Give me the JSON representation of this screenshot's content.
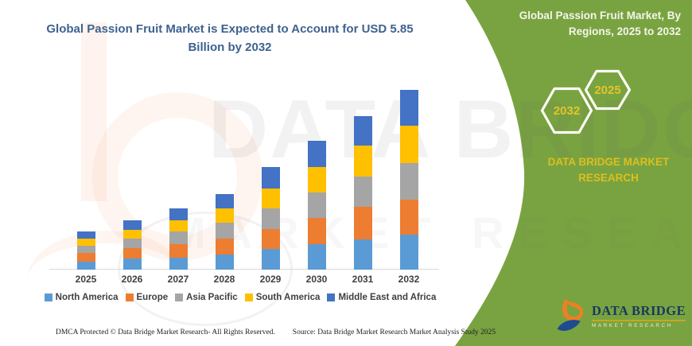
{
  "left_panel": {
    "title": "Global Passion Fruit Market is Expected to Account for USD 5.85 Billion by 2032",
    "footer": {
      "dmca": "DMCA Protected © Data Bridge Market Research- All Rights Reserved.",
      "source": "Source: Data Bridge Market Research Market Analysis Study 2025"
    }
  },
  "right_panel": {
    "heading": "Global Passion Fruit Market, By Regions, 2025 to 2032",
    "hexagons": [
      {
        "label": "2032"
      },
      {
        "label": "2025"
      }
    ],
    "brand_text": "DATA BRIDGE MARKET RESEARCH",
    "logo": {
      "title": "DATA BRIDGE",
      "subtitle": "MARKET RESEARCH"
    }
  },
  "watermark": {
    "line1": "DATA BRIDGE",
    "line2": "MARKET RESEARCH"
  },
  "colors": {
    "panel_green": "#79A341",
    "gold_text": "#DDBE1E",
    "hexagon_year": "#E4C42C",
    "title_blue": "#3E628F",
    "logo_navy": "#18375E",
    "axis_gray": "#d9d9d9"
  },
  "chart_data": {
    "type": "bar",
    "stacked": true,
    "title": "Global Passion Fruit Market, By Regions, 2025 to 2032",
    "unit": "USD Billion",
    "categories": [
      "2025",
      "2026",
      "2027",
      "2028",
      "2029",
      "2030",
      "2031",
      "2032"
    ],
    "series": [
      {
        "name": "North America",
        "color": "#5B9BD5",
        "values": [
          0.26,
          0.34,
          0.38,
          0.49,
          0.65,
          0.82,
          0.97,
          1.12
        ]
      },
      {
        "name": "Europe",
        "color": "#ED7D31",
        "values": [
          0.28,
          0.35,
          0.44,
          0.5,
          0.67,
          0.84,
          1.06,
          1.16
        ]
      },
      {
        "name": "Asia Pacific",
        "color": "#A5A5A5",
        "values": [
          0.22,
          0.3,
          0.4,
          0.52,
          0.66,
          0.84,
          0.98,
          1.18
        ]
      },
      {
        "name": "South America",
        "color": "#FFC000",
        "values": [
          0.23,
          0.29,
          0.37,
          0.47,
          0.65,
          0.82,
          1.03,
          1.22
        ]
      },
      {
        "name": "Middle East and Africa",
        "color": "#4472C4",
        "values": [
          0.25,
          0.31,
          0.38,
          0.48,
          0.69,
          0.86,
          0.95,
          1.17
        ]
      }
    ],
    "totals": [
      1.24,
      1.59,
      1.97,
      2.46,
      3.32,
      4.18,
      4.99,
      5.85
    ],
    "ylim": [
      0,
      6
    ],
    "grid": false,
    "axes_visible": {
      "x": true,
      "y": false
    },
    "legend_position": "bottom"
  }
}
